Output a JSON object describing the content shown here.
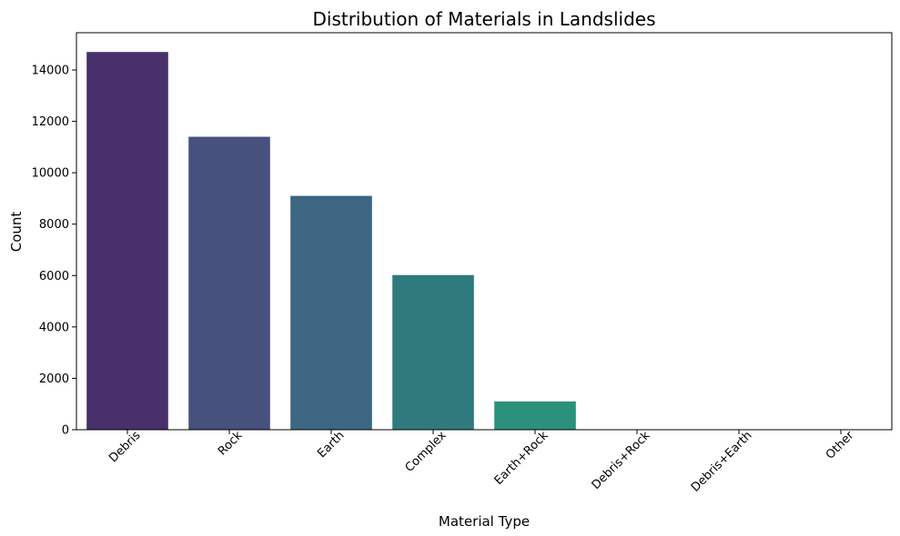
{
  "chart_data": {
    "type": "bar",
    "title": "Distribution of Materials in Landslides",
    "xlabel": "Material Type",
    "ylabel": "Count",
    "categories": [
      "Debris",
      "Rock",
      "Earth",
      "Complex",
      "Earth+Rock",
      "Debris+Rock",
      "Debris+Earth",
      "Other"
    ],
    "values": [
      14700,
      11400,
      9100,
      6020,
      1100,
      0,
      0,
      0
    ],
    "colors": [
      "#48306b",
      "#46527d",
      "#3c6682",
      "#2f7a7d",
      "#2b917c",
      "#2ba678",
      "#4ec36b",
      "#7ccf55"
    ],
    "yticks": [
      0,
      2000,
      4000,
      6000,
      8000,
      10000,
      12000,
      14000
    ],
    "ylim": [
      0,
      15450
    ],
    "grid": false,
    "legend": "none",
    "x_tick_rotation": -45
  }
}
